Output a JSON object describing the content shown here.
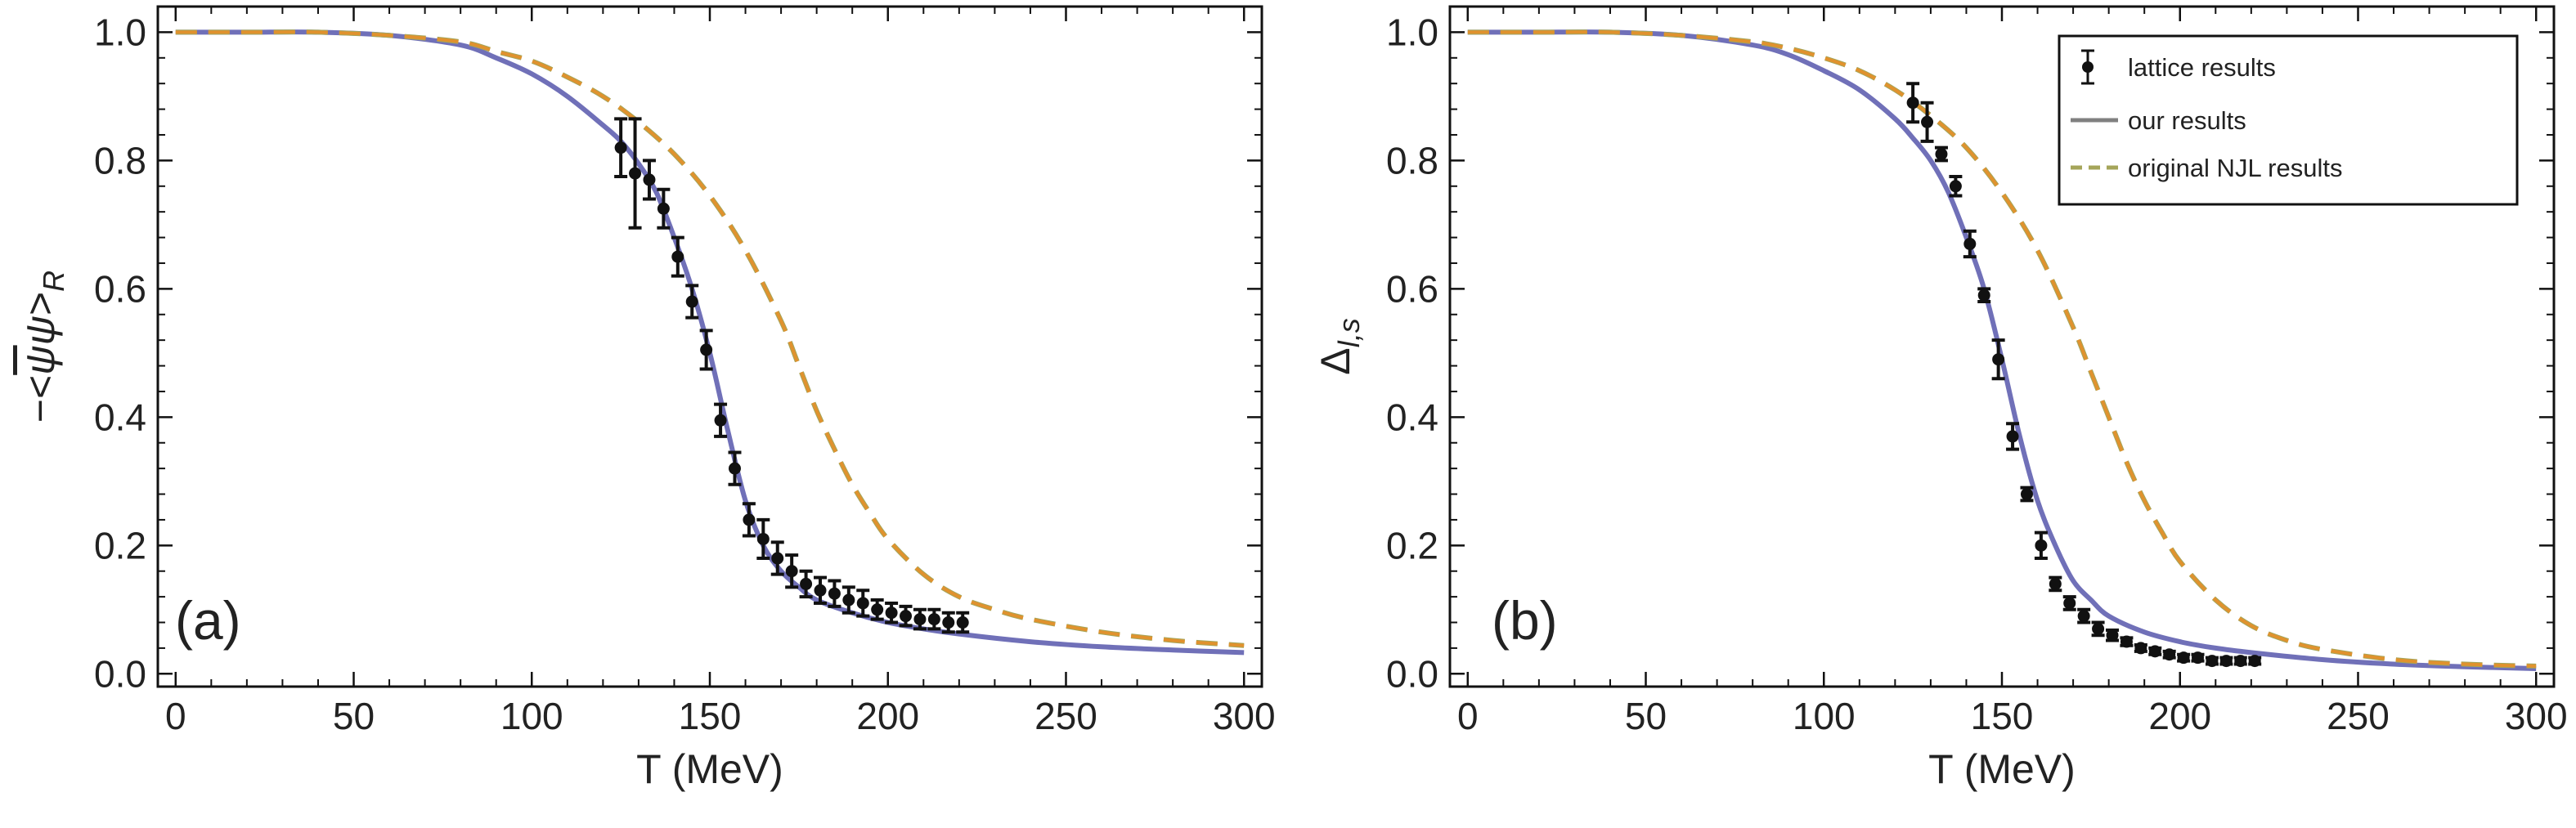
{
  "chart_data": [
    {
      "type": "line",
      "panel_label": "(a)",
      "xlabel": "T (MeV)",
      "ylabel": "−<ψ̄ψ>_R",
      "ylabel_parts": {
        "prefix": "−<",
        "psi_bar": "ψ",
        "psi": "ψ",
        "suffix": ">",
        "subscript": "R"
      },
      "xlim": [
        -5,
        305
      ],
      "ylim": [
        -0.02,
        1.04
      ],
      "xticks": [
        0,
        50,
        100,
        150,
        200,
        250,
        300
      ],
      "yticks": [
        0.0,
        0.2,
        0.4,
        0.6,
        0.8,
        1.0
      ],
      "ytick_labels": [
        "0.0",
        "0.2",
        "0.4",
        "0.6",
        "0.8",
        "1.0"
      ],
      "grid": false,
      "series": [
        {
          "name": "lattice results",
          "style": "points-with-errorbars",
          "color": "#111111",
          "x": [
            125,
            129,
            133,
            137,
            141,
            145,
            149,
            153,
            157,
            161,
            165,
            169,
            173,
            177,
            181,
            185,
            189,
            193,
            197,
            201,
            205,
            209,
            213,
            217,
            221
          ],
          "y": [
            0.82,
            0.78,
            0.77,
            0.725,
            0.65,
            0.58,
            0.505,
            0.395,
            0.32,
            0.24,
            0.21,
            0.18,
            0.16,
            0.14,
            0.13,
            0.125,
            0.115,
            0.11,
            0.1,
            0.095,
            0.09,
            0.085,
            0.085,
            0.08,
            0.08
          ],
          "yerr": [
            0.045,
            0.085,
            0.03,
            0.03,
            0.03,
            0.025,
            0.03,
            0.025,
            0.025,
            0.025,
            0.03,
            0.025,
            0.025,
            0.02,
            0.02,
            0.02,
            0.02,
            0.02,
            0.015,
            0.015,
            0.015,
            0.015,
            0.015,
            0.015,
            0.015
          ]
        },
        {
          "name": "our results",
          "style": "solid",
          "color": "#7070b8",
          "x": [
            0,
            20,
            40,
            60,
            80,
            90,
            100,
            110,
            120,
            125,
            130,
            135,
            140,
            145,
            150,
            155,
            160,
            165,
            170,
            175,
            180,
            190,
            200,
            210,
            220,
            240,
            260,
            280,
            300
          ],
          "y": [
            1.0,
            1.0,
            1.0,
            0.995,
            0.98,
            0.96,
            0.935,
            0.9,
            0.855,
            0.83,
            0.795,
            0.75,
            0.68,
            0.6,
            0.5,
            0.38,
            0.27,
            0.2,
            0.16,
            0.135,
            0.115,
            0.095,
            0.08,
            0.07,
            0.062,
            0.05,
            0.042,
            0.037,
            0.033
          ]
        },
        {
          "name": "original NJL results",
          "style": "dashed",
          "color": "#e0922e",
          "color2": "#a5a55a",
          "x": [
            0,
            20,
            40,
            60,
            80,
            90,
            100,
            110,
            120,
            130,
            140,
            150,
            160,
            170,
            175,
            180,
            185,
            190,
            195,
            200,
            210,
            220,
            230,
            240,
            260,
            280,
            300
          ],
          "y": [
            1.0,
            1.0,
            1.0,
            0.995,
            0.985,
            0.97,
            0.955,
            0.93,
            0.9,
            0.86,
            0.81,
            0.745,
            0.66,
            0.55,
            0.48,
            0.41,
            0.35,
            0.295,
            0.25,
            0.21,
            0.155,
            0.12,
            0.1,
            0.085,
            0.065,
            0.052,
            0.044
          ]
        }
      ]
    },
    {
      "type": "line",
      "panel_label": "(b)",
      "xlabel": "T (MeV)",
      "ylabel": "Δ_l,s",
      "ylabel_parts": {
        "main": "Δ",
        "subscript": "l,s"
      },
      "xlim": [
        -5,
        305
      ],
      "ylim": [
        -0.02,
        1.04
      ],
      "xticks": [
        0,
        50,
        100,
        150,
        200,
        250,
        300
      ],
      "yticks": [
        0.0,
        0.2,
        0.4,
        0.6,
        0.8,
        1.0
      ],
      "ytick_labels": [
        "0.0",
        "0.2",
        "0.4",
        "0.6",
        "0.8",
        "1.0"
      ],
      "grid": false,
      "legend": {
        "placement": "top-right",
        "entries": [
          "lattice results",
          "our results",
          "original NJL results"
        ]
      },
      "series": [
        {
          "name": "lattice results",
          "style": "points-with-errorbars",
          "color": "#111111",
          "x": [
            125,
            129,
            133,
            137,
            141,
            145,
            149,
            153,
            157,
            161,
            165,
            169,
            173,
            177,
            181,
            185,
            189,
            193,
            197,
            201,
            205,
            209,
            213,
            217,
            221
          ],
          "y": [
            0.89,
            0.86,
            0.81,
            0.76,
            0.67,
            0.59,
            0.49,
            0.37,
            0.28,
            0.2,
            0.14,
            0.11,
            0.09,
            0.07,
            0.06,
            0.05,
            0.04,
            0.035,
            0.03,
            0.025,
            0.025,
            0.02,
            0.02,
            0.02,
            0.02
          ],
          "yerr": [
            0.03,
            0.03,
            0.01,
            0.015,
            0.02,
            0.01,
            0.03,
            0.02,
            0.01,
            0.02,
            0.01,
            0.01,
            0.01,
            0.01,
            0.008,
            0.006,
            0.005,
            0.005,
            0.005,
            0.005,
            0.005,
            0.005,
            0.005,
            0.005,
            0.005
          ]
        },
        {
          "name": "our results",
          "style": "solid",
          "color": "#7070b8",
          "x": [
            0,
            20,
            40,
            60,
            80,
            90,
            100,
            110,
            120,
            125,
            130,
            135,
            140,
            145,
            150,
            155,
            160,
            165,
            170,
            175,
            180,
            190,
            200,
            210,
            220,
            240,
            260,
            280,
            300
          ],
          "y": [
            1.0,
            1.0,
            1.0,
            0.995,
            0.98,
            0.965,
            0.94,
            0.91,
            0.865,
            0.835,
            0.8,
            0.75,
            0.68,
            0.6,
            0.49,
            0.37,
            0.27,
            0.2,
            0.145,
            0.115,
            0.09,
            0.065,
            0.05,
            0.04,
            0.033,
            0.022,
            0.015,
            0.011,
            0.008
          ]
        },
        {
          "name": "original NJL results",
          "style": "dashed",
          "color": "#e0922e",
          "color2": "#a5a55a",
          "x": [
            0,
            20,
            40,
            60,
            80,
            90,
            100,
            110,
            120,
            130,
            140,
            150,
            160,
            170,
            175,
            180,
            185,
            190,
            195,
            200,
            210,
            220,
            230,
            240,
            260,
            280,
            300
          ],
          "y": [
            1.0,
            1.0,
            1.0,
            0.995,
            0.985,
            0.975,
            0.96,
            0.94,
            0.91,
            0.87,
            0.82,
            0.75,
            0.66,
            0.54,
            0.47,
            0.4,
            0.33,
            0.27,
            0.22,
            0.175,
            0.115,
            0.075,
            0.052,
            0.038,
            0.022,
            0.015,
            0.012
          ]
        }
      ]
    }
  ]
}
